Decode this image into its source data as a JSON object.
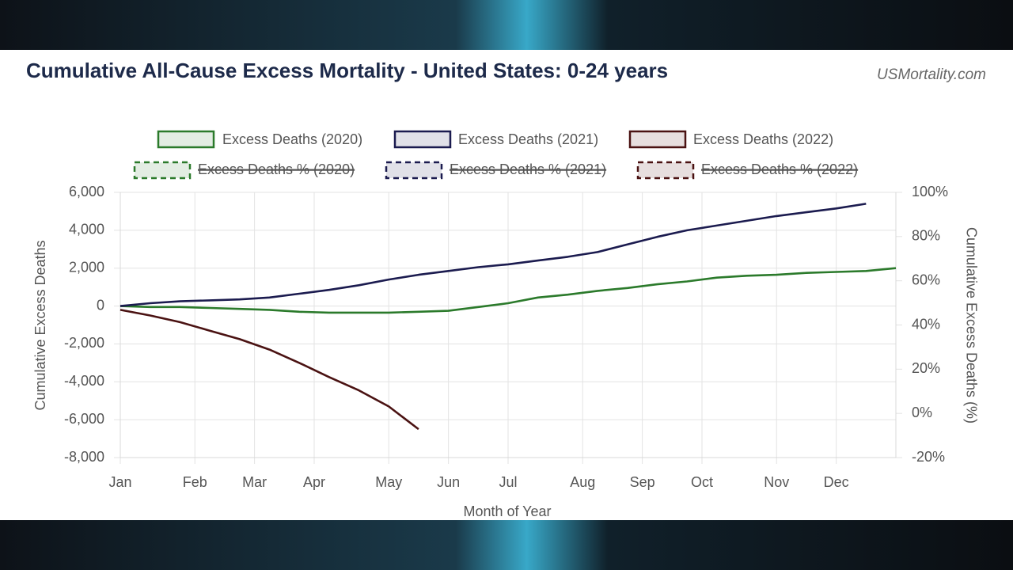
{
  "chart_data": {
    "type": "line",
    "title": "Cumulative All-Cause Excess Mortality - United States: 0-24 years",
    "source": "USMortality.com",
    "x_label": "Month of Year",
    "y_label": "Cumulative Excess Deaths",
    "y2_label": "Cumulative Excess Deaths (%)",
    "x": [
      0,
      2,
      4,
      6,
      8,
      10,
      12,
      14,
      16,
      18,
      20,
      22,
      24,
      26,
      28,
      30,
      32,
      34,
      36,
      38,
      40,
      42,
      44,
      46,
      48,
      50,
      52
    ],
    "xlim": [
      0,
      52
    ],
    "xticks": [
      {
        "value": 0,
        "label": "Jan"
      },
      {
        "value": 5,
        "label": "Feb"
      },
      {
        "value": 9,
        "label": "Mar"
      },
      {
        "value": 13,
        "label": "Apr"
      },
      {
        "value": 18,
        "label": "May"
      },
      {
        "value": 22,
        "label": "Jun"
      },
      {
        "value": 26,
        "label": "Jul"
      },
      {
        "value": 31,
        "label": "Aug"
      },
      {
        "value": 35,
        "label": "Sep"
      },
      {
        "value": 39,
        "label": "Oct"
      },
      {
        "value": 44,
        "label": "Nov"
      },
      {
        "value": 48,
        "label": "Dec"
      }
    ],
    "ylim": [
      -8000,
      6000
    ],
    "yticks": [
      {
        "value": 6000,
        "label": "6,000"
      },
      {
        "value": 4000,
        "label": "4,000"
      },
      {
        "value": 2000,
        "label": "2,000"
      },
      0,
      {
        "value": -2000,
        "label": "-2,000"
      },
      {
        "value": -4000,
        "label": "-4,000"
      },
      {
        "value": -6000,
        "label": "-6,000"
      },
      {
        "value": -8000,
        "label": "-8,000"
      }
    ],
    "y2lim": [
      -20,
      100
    ],
    "y2ticks": [
      {
        "value": 100,
        "label": "100%"
      },
      {
        "value": 80,
        "label": "80%"
      },
      {
        "value": 60,
        "label": "60%"
      },
      {
        "value": 40,
        "label": "40%"
      },
      {
        "value": 20,
        "label": "20%"
      },
      {
        "value": 0,
        "label": "0%"
      },
      {
        "value": -20,
        "label": "-20%"
      }
    ],
    "grid": true,
    "series": [
      {
        "name": "Excess Deaths (2020)",
        "color": "#2b7a2b",
        "values": [
          0,
          -50,
          -50,
          -100,
          -150,
          -200,
          -300,
          -350,
          -350,
          -350,
          -300,
          -250,
          -50,
          150,
          450,
          600,
          800,
          950,
          1150,
          1300,
          1500,
          1600,
          1650,
          1750,
          1800,
          1850,
          2000
        ]
      },
      {
        "name": "Excess Deaths (2021)",
        "color": "#1b1b4f",
        "values": [
          0,
          150,
          250,
          300,
          350,
          450,
          650,
          850,
          1100,
          1400,
          1650,
          1850,
          2050,
          2200,
          2400,
          2600,
          2850,
          3250,
          3650,
          4000,
          4250,
          4500,
          4750,
          4950,
          5150,
          5400,
          null
        ]
      },
      {
        "name": "Excess Deaths (2022)",
        "color": "#4a1212",
        "values": [
          -200,
          -500,
          -850,
          -1300,
          -1750,
          -2300,
          -3000,
          -3750,
          -4450,
          -5300,
          -6500,
          null,
          null,
          null,
          null,
          null,
          null,
          null,
          null,
          null,
          null,
          null,
          null,
          null,
          null,
          null,
          null
        ]
      }
    ],
    "hidden_series": [
      {
        "name": "Excess Deaths % (2020)",
        "color": "#2b7a2b"
      },
      {
        "name": "Excess Deaths % (2021)",
        "color": "#1b1b4f"
      },
      {
        "name": "Excess Deaths % (2022)",
        "color": "#4a1212"
      }
    ]
  }
}
